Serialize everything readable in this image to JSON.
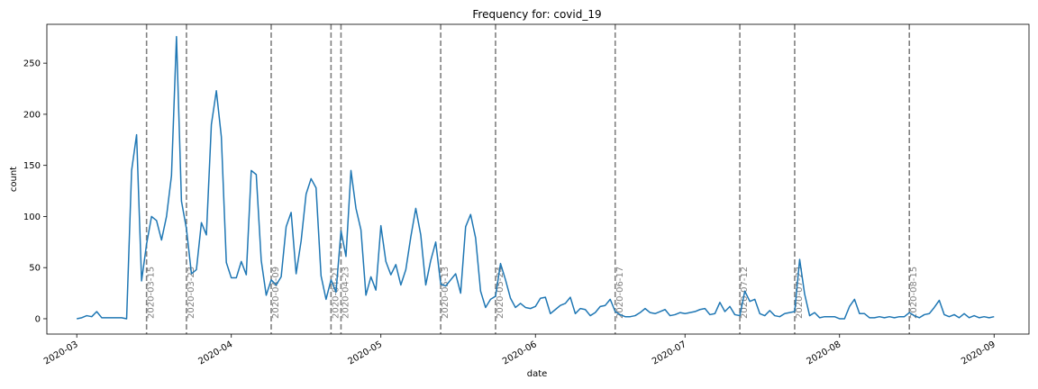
{
  "chart_data": {
    "type": "line",
    "title": "Frequency for: covid_19",
    "xlabel": "date",
    "ylabel": "count",
    "ylim": [
      -15,
      288
    ],
    "xlim": [
      "2020-02-24",
      "2020-09-08"
    ],
    "yticks": [
      0,
      50,
      100,
      150,
      200,
      250
    ],
    "xticks": [
      {
        "date": "2020-03-01",
        "label": "2020-03"
      },
      {
        "date": "2020-04-01",
        "label": "2020-04"
      },
      {
        "date": "2020-05-01",
        "label": "2020-05"
      },
      {
        "date": "2020-06-01",
        "label": "2020-06"
      },
      {
        "date": "2020-07-01",
        "label": "2020-07"
      },
      {
        "date": "2020-08-01",
        "label": "2020-08"
      },
      {
        "date": "2020-09-01",
        "label": "2020-09"
      }
    ],
    "grid": false,
    "line_color": "#1f77b4",
    "event_line_color": "#808080",
    "events": [
      {
        "date": "2020-03-15",
        "label": "2020-03-15"
      },
      {
        "date": "2020-03-23",
        "label": "2020-03-23"
      },
      {
        "date": "2020-04-09",
        "label": "2020-04-09"
      },
      {
        "date": "2020-04-21",
        "label": "2020-04-21"
      },
      {
        "date": "2020-04-23",
        "label": "2020-04-23"
      },
      {
        "date": "2020-05-13",
        "label": "2020-05-13"
      },
      {
        "date": "2020-05-24",
        "label": "2020-05-24"
      },
      {
        "date": "2020-06-17",
        "label": "2020-06-17"
      },
      {
        "date": "2020-07-12",
        "label": "2020-07-12"
      },
      {
        "date": "2020-07-23",
        "label": "2020-07-23"
      },
      {
        "date": "2020-08-15",
        "label": "2020-08-15"
      }
    ],
    "series": [
      {
        "start_date": "2020-03-01",
        "values": [
          0,
          1,
          3,
          2,
          7,
          1,
          1,
          1,
          1,
          1,
          0,
          145,
          180,
          37,
          73,
          100,
          96,
          77,
          100,
          140,
          276,
          115,
          88,
          44,
          48,
          94,
          82,
          190,
          223,
          178,
          55,
          40,
          40,
          56,
          43,
          145,
          141,
          57,
          23,
          38,
          33,
          41,
          90,
          104,
          44,
          76,
          122,
          137,
          128,
          42,
          19,
          38,
          26,
          86,
          61,
          145,
          108,
          87,
          23,
          41,
          28,
          91,
          56,
          43,
          53,
          33,
          48,
          80,
          108,
          82,
          33,
          57,
          75,
          34,
          32,
          38,
          44,
          25,
          90,
          102,
          79,
          27,
          11,
          19,
          22,
          54,
          38,
          20,
          11,
          15,
          11,
          10,
          12,
          20,
          21,
          5,
          9,
          13,
          15,
          21,
          5,
          10,
          9,
          3,
          6,
          12,
          13,
          19,
          7,
          4,
          2,
          2,
          3,
          6,
          10,
          6,
          5,
          7,
          9,
          3,
          4,
          6,
          5,
          6,
          7,
          9,
          10,
          4,
          5,
          16,
          7,
          12,
          4,
          3,
          27,
          17,
          19,
          5,
          3,
          8,
          3,
          2,
          5,
          6,
          7,
          58,
          24,
          3,
          6,
          1,
          2,
          2,
          2,
          0,
          0,
          12,
          19,
          5,
          5,
          1,
          1,
          2,
          1,
          2,
          1,
          2,
          2,
          6,
          3,
          1,
          4,
          5,
          11,
          18,
          4,
          2,
          4,
          1,
          5,
          1,
          3,
          1,
          2,
          1,
          2
        ]
      }
    ]
  }
}
